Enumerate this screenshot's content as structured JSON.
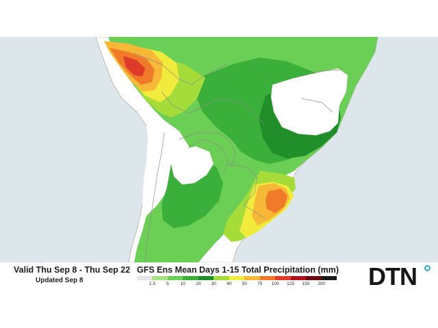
{
  "header": {
    "valid_range": "Valid Thu Sep 8 - Thu Sep 22",
    "updated": "Updated Sep 8"
  },
  "map": {
    "title": "GFS Ens Mean Days 1-15 Total Precipitation (mm)",
    "region": "South America",
    "colors": {
      "ocean": "#dde6ea",
      "land_no_precip": "#ffffff",
      "border": "#888888"
    }
  },
  "legend": {
    "unit": "mm",
    "ticks": [
      "2.5",
      "5",
      "10",
      "20",
      "30",
      "40",
      "50",
      "75",
      "100",
      "125",
      "150",
      "200"
    ],
    "colors": [
      "#e6e6e6",
      "#a8e08a",
      "#6ccf55",
      "#3ab03a",
      "#208f2a",
      "#a5dc3a",
      "#f1ec3c",
      "#f6b836",
      "#ee7a2a",
      "#de3a2a",
      "#b0101a",
      "#6a0810",
      "#1a1a1a"
    ]
  },
  "brand": {
    "logo_text": "DTN",
    "logo_dot_color": "#2aa6d6"
  }
}
